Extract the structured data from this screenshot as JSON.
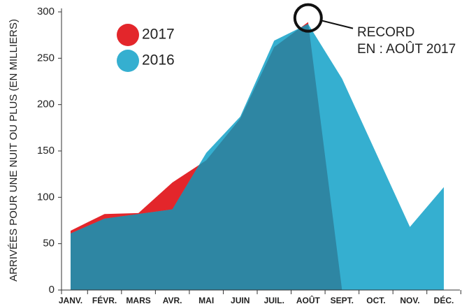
{
  "chart_data": {
    "type": "area",
    "y_label": "ARRIVÉES POUR UNE NUIT OU PLUS (EN MILLIERS)",
    "categories": [
      "JANV.",
      "FÉVR.",
      "MARS",
      "AVR.",
      "MAI",
      "JUIN",
      "JUIL.",
      "AOÛT",
      "SEPT.",
      "OCT.",
      "NOV.",
      "DÉC."
    ],
    "series": [
      {
        "name": "2017",
        "color": "#e3262b",
        "values": [
          64,
          82,
          83,
          116,
          140,
          185,
          262,
          289,
          0,
          null,
          null,
          null
        ]
      },
      {
        "name": "2016",
        "color": "#35afd0",
        "values": [
          61,
          77,
          82,
          87,
          148,
          187,
          269,
          287,
          228,
          148,
          68,
          111
        ]
      }
    ],
    "overlap_color": "#2e86a3",
    "ylim": [
      0,
      300
    ],
    "yticks": [
      0,
      50,
      100,
      150,
      200,
      250,
      300
    ],
    "annotation": [
      "RECORD",
      "EN : AOÛT 2017"
    ],
    "legend": "upper left"
  }
}
